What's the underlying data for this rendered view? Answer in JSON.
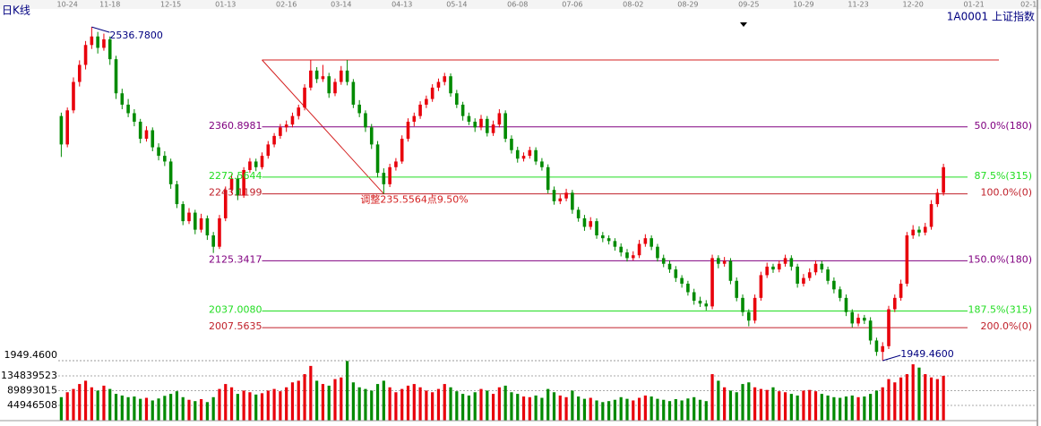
{
  "chart_data": {
    "type": "candlestick",
    "title": "日K线",
    "symbol": "1A0001 上证指数",
    "xlim": [
      -0.5,
      160
    ],
    "xticks": [
      {
        "value": 1,
        "label": "10-24"
      },
      {
        "value": 8,
        "label": "11-18"
      },
      {
        "value": 18,
        "label": "12-15"
      },
      {
        "value": 27,
        "label": "01-13"
      },
      {
        "value": 37,
        "label": "02-16"
      },
      {
        "value": 46,
        "label": "03-14"
      },
      {
        "value": 56,
        "label": "04-13"
      },
      {
        "value": 65,
        "label": "05-14"
      },
      {
        "value": 75,
        "label": "06-08"
      },
      {
        "value": 84,
        "label": "07-06"
      },
      {
        "value": 94,
        "label": "08-02"
      },
      {
        "value": 103,
        "label": "08-29"
      },
      {
        "value": 113,
        "label": "09-25"
      },
      {
        "value": 122,
        "label": "10-29"
      },
      {
        "value": 131,
        "label": "11-23"
      },
      {
        "value": 140,
        "label": "12-20"
      },
      {
        "value": 150,
        "label": "01-21"
      },
      {
        "value": 159,
        "label": "02-1"
      }
    ],
    "ylim": [
      1944,
      2570
    ],
    "up_color": "#e8000b",
    "down_color": "#008a00",
    "candles": [
      [
        2380,
        2386,
        2308,
        2330
      ],
      [
        2330,
        2395,
        2325,
        2390
      ],
      [
        2390,
        2448,
        2385,
        2440
      ],
      [
        2440,
        2478,
        2432,
        2470
      ],
      [
        2470,
        2512,
        2462,
        2505
      ],
      [
        2505,
        2536.78,
        2498,
        2520
      ],
      [
        2520,
        2528,
        2490,
        2500
      ],
      [
        2500,
        2525,
        2495,
        2515
      ],
      [
        2515,
        2520,
        2470,
        2480
      ],
      [
        2480,
        2486,
        2410,
        2420
      ],
      [
        2420,
        2428,
        2392,
        2400
      ],
      [
        2400,
        2410,
        2378,
        2385
      ],
      [
        2385,
        2392,
        2362,
        2370
      ],
      [
        2370,
        2375,
        2332,
        2340
      ],
      [
        2340,
        2362,
        2335,
        2355
      ],
      [
        2355,
        2360,
        2318,
        2325
      ],
      [
        2325,
        2332,
        2302,
        2310
      ],
      [
        2310,
        2318,
        2292,
        2300
      ],
      [
        2300,
        2305,
        2252,
        2260
      ],
      [
        2260,
        2266,
        2218,
        2225
      ],
      [
        2225,
        2230,
        2188,
        2195
      ],
      [
        2195,
        2218,
        2190,
        2210
      ],
      [
        2210,
        2215,
        2172,
        2180
      ],
      [
        2180,
        2208,
        2175,
        2200
      ],
      [
        2200,
        2205,
        2162,
        2170
      ],
      [
        2170,
        2176,
        2139,
        2150
      ],
      [
        2150,
        2206,
        2146,
        2200
      ],
      [
        2200,
        2256,
        2195,
        2250
      ],
      [
        2250,
        2278,
        2244,
        2270
      ],
      [
        2270,
        2276,
        2232,
        2240
      ],
      [
        2240,
        2290,
        2236,
        2285
      ],
      [
        2285,
        2306,
        2280,
        2300
      ],
      [
        2300,
        2305,
        2283,
        2290
      ],
      [
        2290,
        2316,
        2286,
        2310
      ],
      [
        2310,
        2336,
        2305,
        2330
      ],
      [
        2330,
        2350,
        2325,
        2345
      ],
      [
        2345,
        2366,
        2340,
        2360
      ],
      [
        2360,
        2372,
        2352,
        2365
      ],
      [
        2365,
        2386,
        2360,
        2380
      ],
      [
        2380,
        2400,
        2374,
        2395
      ],
      [
        2395,
        2436,
        2390,
        2430
      ],
      [
        2430,
        2478.68,
        2425,
        2460
      ],
      [
        2460,
        2466,
        2438,
        2445
      ],
      [
        2445,
        2470,
        2440,
        2450
      ],
      [
        2450,
        2456,
        2412,
        2420
      ],
      [
        2420,
        2446,
        2415,
        2440
      ],
      [
        2440,
        2468,
        2435,
        2460
      ],
      [
        2460,
        2478.68,
        2434,
        2440
      ],
      [
        2440,
        2445,
        2394,
        2400
      ],
      [
        2400,
        2408,
        2378,
        2385
      ],
      [
        2385,
        2390,
        2352,
        2360
      ],
      [
        2360,
        2366,
        2322,
        2330
      ],
      [
        2330,
        2336,
        2272,
        2280
      ],
      [
        2280,
        2288,
        2243.12,
        2260
      ],
      [
        2260,
        2296,
        2255,
        2290
      ],
      [
        2290,
        2306,
        2284,
        2300
      ],
      [
        2300,
        2346,
        2296,
        2340
      ],
      [
        2340,
        2376,
        2335,
        2370
      ],
      [
        2370,
        2386,
        2362,
        2380
      ],
      [
        2380,
        2406,
        2375,
        2400
      ],
      [
        2400,
        2416,
        2394,
        2410
      ],
      [
        2410,
        2436,
        2405,
        2430
      ],
      [
        2430,
        2446,
        2424,
        2440
      ],
      [
        2440,
        2456,
        2434,
        2450
      ],
      [
        2450,
        2455,
        2414,
        2420
      ],
      [
        2420,
        2426,
        2394,
        2400
      ],
      [
        2400,
        2405,
        2372,
        2380
      ],
      [
        2380,
        2386,
        2364,
        2370
      ],
      [
        2370,
        2376,
        2352,
        2360
      ],
      [
        2360,
        2382,
        2355,
        2375
      ],
      [
        2375,
        2380,
        2344,
        2350
      ],
      [
        2350,
        2372,
        2345,
        2365
      ],
      [
        2365,
        2392,
        2360,
        2385
      ],
      [
        2385,
        2390,
        2334,
        2340
      ],
      [
        2340,
        2346,
        2314,
        2320
      ],
      [
        2320,
        2326,
        2298,
        2305
      ],
      [
        2305,
        2316,
        2300,
        2310
      ],
      [
        2310,
        2326,
        2305,
        2320
      ],
      [
        2320,
        2325,
        2294,
        2300
      ],
      [
        2300,
        2306,
        2284,
        2290
      ],
      [
        2290,
        2295,
        2244,
        2250
      ],
      [
        2250,
        2256,
        2224,
        2230
      ],
      [
        2230,
        2242,
        2225,
        2235
      ],
      [
        2235,
        2252,
        2230,
        2245
      ],
      [
        2245,
        2250,
        2208,
        2215
      ],
      [
        2215,
        2220,
        2194,
        2200
      ],
      [
        2200,
        2206,
        2178,
        2185
      ],
      [
        2185,
        2202,
        2180,
        2195
      ],
      [
        2195,
        2200,
        2164,
        2170
      ],
      [
        2170,
        2176,
        2158,
        2165
      ],
      [
        2165,
        2170,
        2154,
        2160
      ],
      [
        2160,
        2165,
        2143,
        2150
      ],
      [
        2150,
        2156,
        2133,
        2140
      ],
      [
        2140,
        2146,
        2124,
        2130
      ],
      [
        2130,
        2142,
        2126,
        2135
      ],
      [
        2135,
        2162,
        2130,
        2155
      ],
      [
        2155,
        2172,
        2150,
        2165
      ],
      [
        2165,
        2170,
        2144,
        2150
      ],
      [
        2150,
        2155,
        2124,
        2130
      ],
      [
        2130,
        2136,
        2114,
        2120
      ],
      [
        2120,
        2126,
        2104,
        2110
      ],
      [
        2110,
        2116,
        2088,
        2095
      ],
      [
        2095,
        2100,
        2078,
        2085
      ],
      [
        2085,
        2090,
        2064,
        2070
      ],
      [
        2070,
        2076,
        2048,
        2055
      ],
      [
        2055,
        2062,
        2044,
        2050
      ],
      [
        2050,
        2056,
        2038,
        2045
      ],
      [
        2045,
        2136,
        2040,
        2130
      ],
      [
        2130,
        2135,
        2112,
        2120
      ],
      [
        2120,
        2132,
        2115,
        2125
      ],
      [
        2125,
        2130,
        2084,
        2090
      ],
      [
        2090,
        2096,
        2054,
        2060
      ],
      [
        2060,
        2066,
        2028,
        2035
      ],
      [
        2035,
        2040,
        2010,
        2020
      ],
      [
        2020,
        2066,
        2015,
        2060
      ],
      [
        2060,
        2106,
        2055,
        2100
      ],
      [
        2100,
        2122,
        2095,
        2115
      ],
      [
        2115,
        2120,
        2104,
        2110
      ],
      [
        2110,
        2126,
        2105,
        2120
      ],
      [
        2120,
        2136,
        2115,
        2130
      ],
      [
        2130,
        2135,
        2108,
        2115
      ],
      [
        2115,
        2120,
        2078,
        2085
      ],
      [
        2085,
        2102,
        2080,
        2095
      ],
      [
        2095,
        2112,
        2090,
        2105
      ],
      [
        2105,
        2126,
        2100,
        2120
      ],
      [
        2120,
        2125,
        2104,
        2110
      ],
      [
        2110,
        2115,
        2084,
        2090
      ],
      [
        2090,
        2096,
        2068,
        2075
      ],
      [
        2075,
        2080,
        2054,
        2060
      ],
      [
        2060,
        2066,
        2028,
        2035
      ],
      [
        2035,
        2040,
        2008,
        2015
      ],
      [
        2015,
        2032,
        2010,
        2025
      ],
      [
        2025,
        2030,
        2014,
        2020
      ],
      [
        2020,
        2026,
        1978,
        1985
      ],
      [
        1985,
        1990,
        1958,
        1965
      ],
      [
        1965,
        1982,
        1949.46,
        1975
      ],
      [
        1975,
        2046,
        1970,
        2040
      ],
      [
        2040,
        2066,
        2035,
        2060
      ],
      [
        2060,
        2092,
        2055,
        2085
      ],
      [
        2085,
        2176,
        2080,
        2170
      ],
      [
        2170,
        2188,
        2164,
        2180
      ],
      [
        2180,
        2186,
        2168,
        2175
      ],
      [
        2175,
        2192,
        2170,
        2185
      ],
      [
        2185,
        2232,
        2180,
        2225
      ],
      [
        2225,
        2252,
        2220,
        2245
      ],
      [
        2245,
        2296,
        2240,
        2290
      ]
    ],
    "vlim": [
      0,
      181000000
    ],
    "vticks": [
      44946508,
      89893015,
      134839523
    ],
    "volume": [
      70000000,
      85000000,
      95000000,
      110000000,
      120000000,
      100000000,
      90000000,
      105000000,
      95000000,
      80000000,
      75000000,
      70000000,
      72000000,
      65000000,
      68000000,
      60000000,
      66000000,
      74000000,
      80000000,
      88000000,
      70000000,
      62000000,
      58000000,
      64000000,
      55000000,
      70000000,
      95000000,
      110000000,
      100000000,
      80000000,
      90000000,
      85000000,
      78000000,
      82000000,
      90000000,
      95000000,
      88000000,
      100000000,
      115000000,
      120000000,
      140000000,
      165000000,
      120000000,
      110000000,
      105000000,
      125000000,
      130000000,
      180000000,
      115000000,
      100000000,
      95000000,
      90000000,
      110000000,
      120000000,
      100000000,
      85000000,
      95000000,
      105000000,
      110000000,
      100000000,
      90000000,
      85000000,
      95000000,
      110000000,
      100000000,
      88000000,
      80000000,
      75000000,
      85000000,
      95000000,
      90000000,
      80000000,
      100000000,
      105000000,
      85000000,
      80000000,
      72000000,
      70000000,
      75000000,
      68000000,
      95000000,
      85000000,
      75000000,
      70000000,
      90000000,
      72000000,
      65000000,
      68000000,
      60000000,
      55000000,
      58000000,
      62000000,
      70000000,
      65000000,
      60000000,
      68000000,
      75000000,
      72000000,
      65000000,
      62000000,
      58000000,
      64000000,
      60000000,
      66000000,
      70000000,
      62000000,
      58000000,
      140000000,
      120000000,
      100000000,
      90000000,
      85000000,
      110000000,
      115000000,
      100000000,
      95000000,
      92000000,
      100000000,
      88000000,
      85000000,
      80000000,
      75000000,
      90000000,
      92000000,
      88000000,
      80000000,
      75000000,
      70000000,
      68000000,
      72000000,
      75000000,
      70000000,
      72000000,
      80000000,
      90000000,
      100000000,
      125000000,
      115000000,
      130000000,
      140000000,
      170000000,
      160000000,
      140000000,
      130000000,
      125000000,
      135000000
    ],
    "peak": {
      "value": 2536.78,
      "label": "2536.7800"
    },
    "trough": {
      "value": 1949.46,
      "label": "1949.4600"
    },
    "fib": {
      "x": [
        33,
        53
      ],
      "high": 2478.6763,
      "low": 2243.1199,
      "color": "#d42020",
      "note": "调整235.5564点9.50%",
      "levels": [
        {
          "value": 2360.8981,
          "label": "2360.8981",
          "ratio": "50.0%(180)",
          "color": "#800080"
        },
        {
          "value": 2272.5644,
          "label": "2272.5644",
          "ratio": "87.5%(315)",
          "color": "#22dd22"
        },
        {
          "value": 2243.1199,
          "label": "2243.1199",
          "ratio": "100.0%(0)",
          "color": "#c0202a"
        },
        {
          "value": 2125.3417,
          "label": "2125.3417",
          "ratio": "150.0%(180)",
          "color": "#800080"
        },
        {
          "value": 2037.008,
          "label": "2037.0080",
          "ratio": "187.5%(315)",
          "color": "#22dd22"
        },
        {
          "value": 2007.5635,
          "label": "2007.5635",
          "ratio": "200.0%(0)",
          "color": "#c0202a"
        }
      ]
    }
  }
}
